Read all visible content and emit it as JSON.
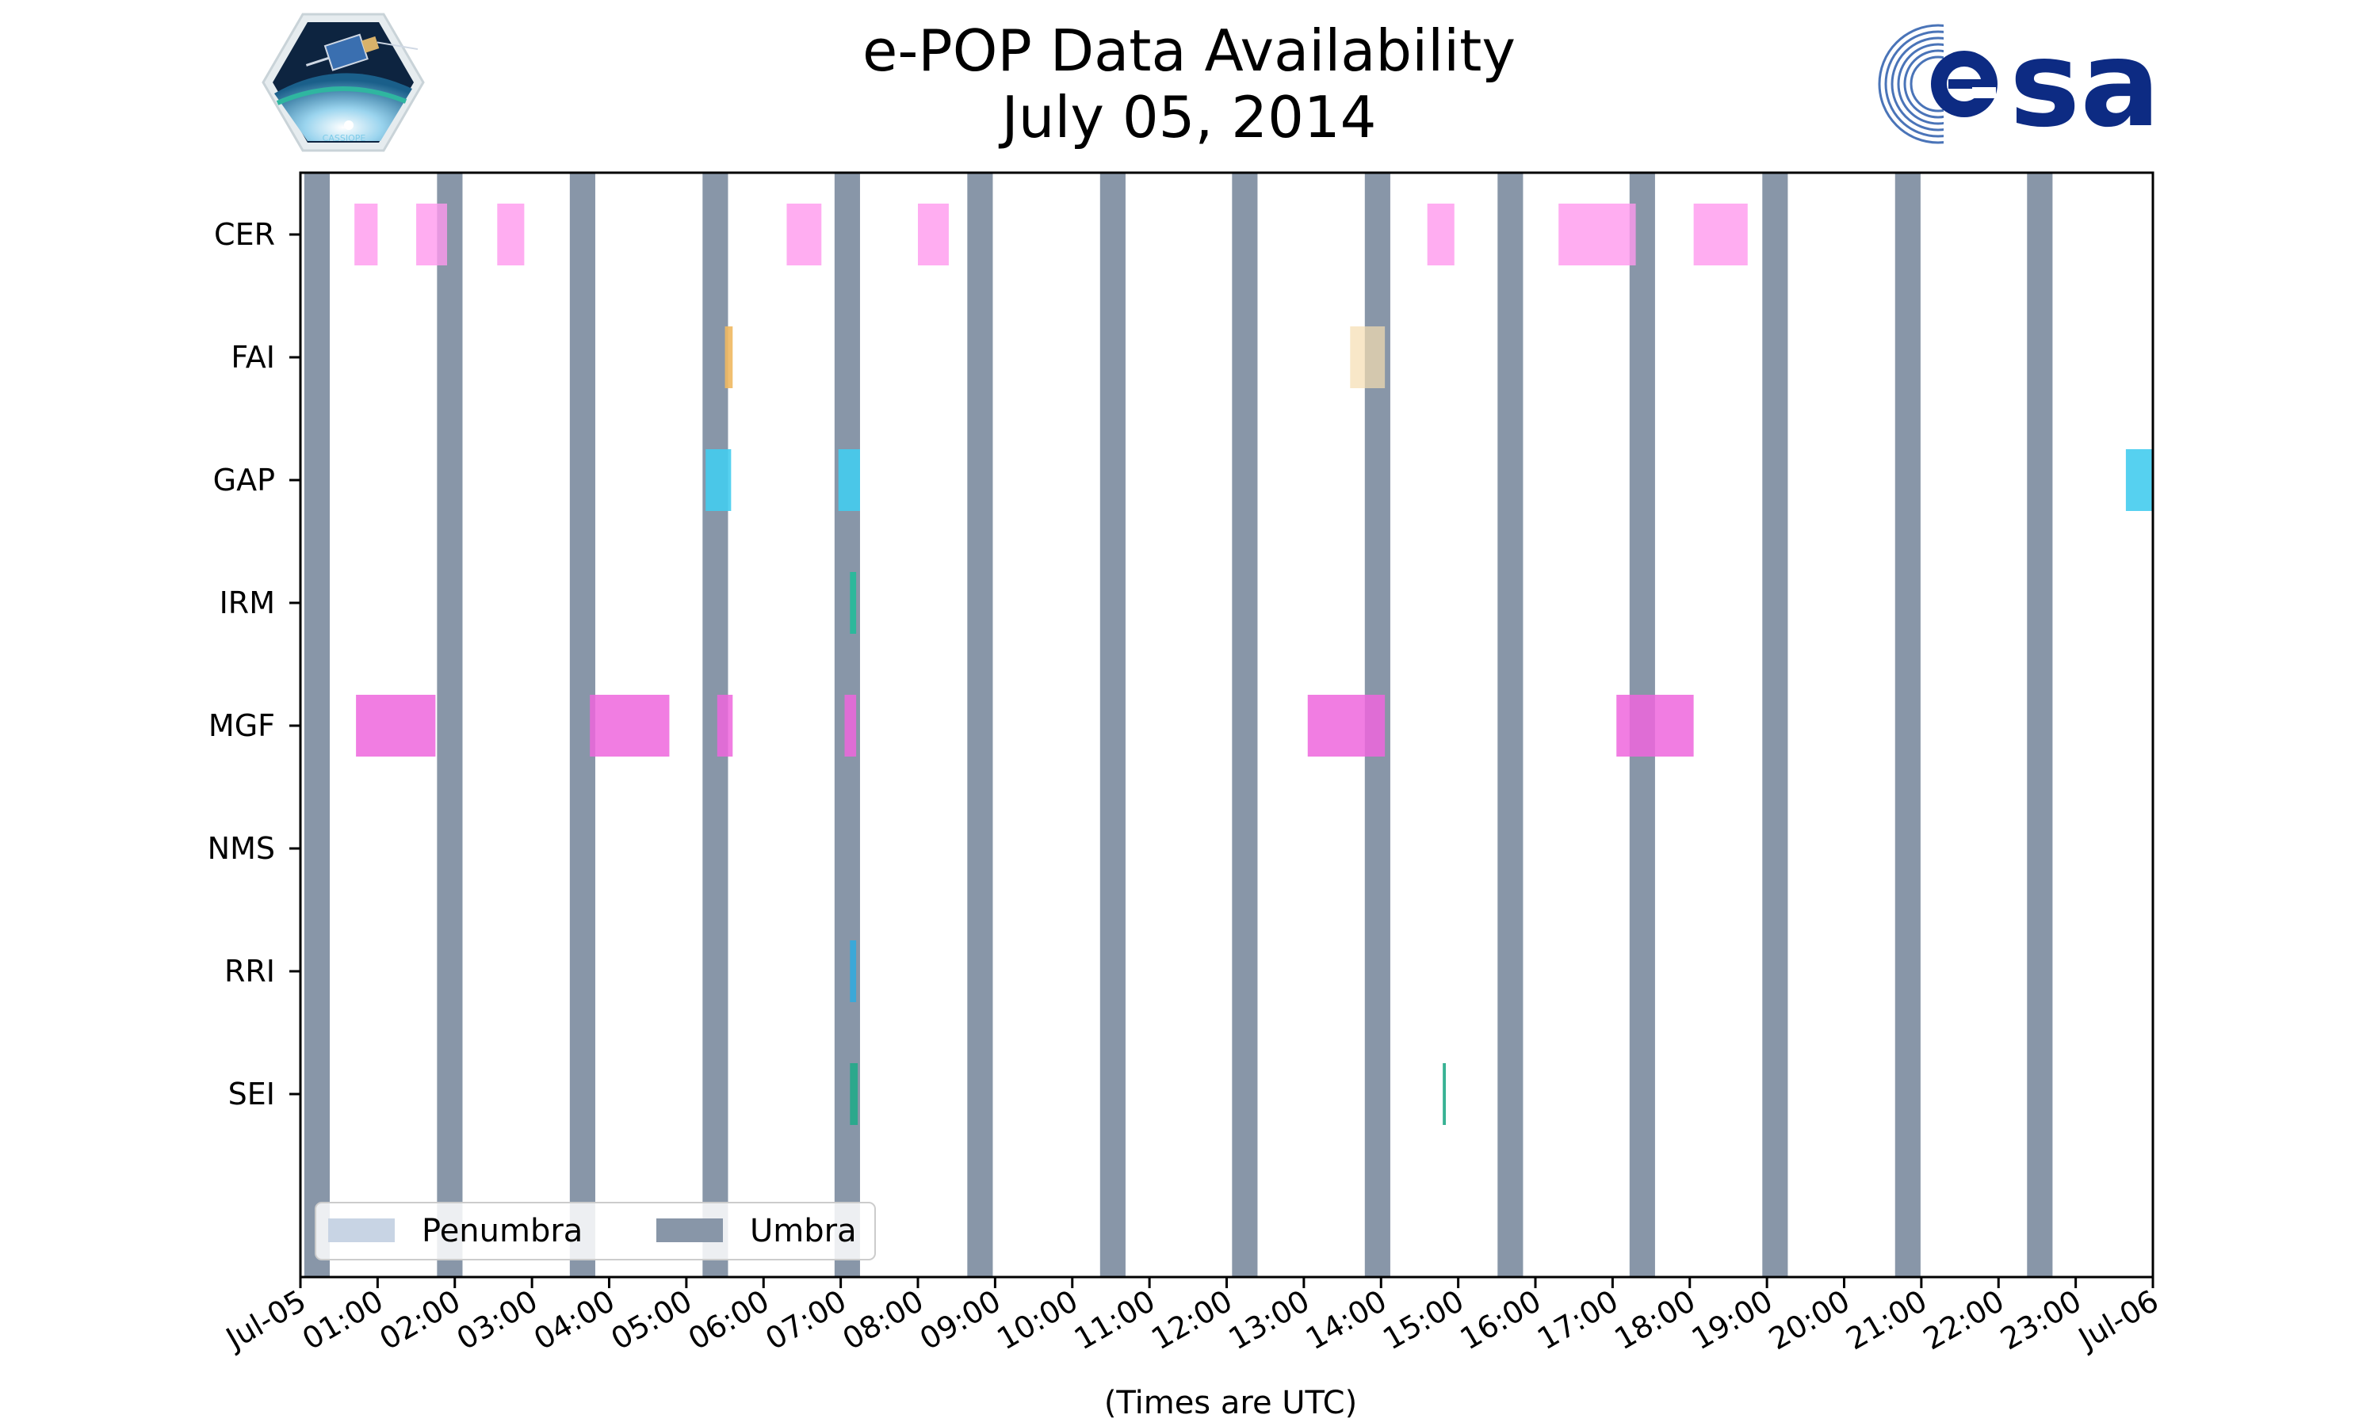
{
  "chart_data": {
    "type": "timeline",
    "title": "e-POP Data Availability",
    "subtitle": "July 05, 2014",
    "xlabel": "(Times are UTC)",
    "x_range_hours": [
      0,
      24
    ],
    "x_ticks": [
      {
        "h": 0,
        "label": "Jul-05"
      },
      {
        "h": 1,
        "label": "01:00"
      },
      {
        "h": 2,
        "label": "02:00"
      },
      {
        "h": 3,
        "label": "03:00"
      },
      {
        "h": 4,
        "label": "04:00"
      },
      {
        "h": 5,
        "label": "05:00"
      },
      {
        "h": 6,
        "label": "06:00"
      },
      {
        "h": 7,
        "label": "07:00"
      },
      {
        "h": 8,
        "label": "08:00"
      },
      {
        "h": 9,
        "label": "09:00"
      },
      {
        "h": 10,
        "label": "10:00"
      },
      {
        "h": 11,
        "label": "11:00"
      },
      {
        "h": 12,
        "label": "12:00"
      },
      {
        "h": 13,
        "label": "13:00"
      },
      {
        "h": 14,
        "label": "14:00"
      },
      {
        "h": 15,
        "label": "15:00"
      },
      {
        "h": 16,
        "label": "16:00"
      },
      {
        "h": 17,
        "label": "17:00"
      },
      {
        "h": 18,
        "label": "18:00"
      },
      {
        "h": 19,
        "label": "19:00"
      },
      {
        "h": 20,
        "label": "20:00"
      },
      {
        "h": 21,
        "label": "21:00"
      },
      {
        "h": 22,
        "label": "22:00"
      },
      {
        "h": 23,
        "label": "23:00"
      },
      {
        "h": 24,
        "label": "Jul-06"
      }
    ],
    "instruments": [
      "CER",
      "FAI",
      "GAP",
      "IRM",
      "MGF",
      "NMS",
      "RRI",
      "SEI"
    ],
    "umbra_intervals": [
      [
        0.05,
        0.38
      ],
      [
        1.77,
        2.1
      ],
      [
        3.49,
        3.82
      ],
      [
        5.21,
        5.54
      ],
      [
        6.92,
        7.25
      ],
      [
        8.64,
        8.97
      ],
      [
        10.36,
        10.69
      ],
      [
        12.07,
        12.4
      ],
      [
        13.79,
        14.12
      ],
      [
        15.51,
        15.84
      ],
      [
        17.22,
        17.55
      ],
      [
        18.94,
        19.27
      ],
      [
        20.66,
        20.99
      ],
      [
        22.37,
        22.7
      ]
    ],
    "series": [
      {
        "name": "CER",
        "color": "#ff99ee",
        "opacity": 0.8,
        "intervals": [
          [
            0.7,
            1.0
          ],
          [
            1.5,
            1.9
          ],
          [
            2.55,
            2.9
          ],
          [
            6.3,
            6.75
          ],
          [
            8.0,
            8.4
          ],
          [
            14.6,
            14.95
          ],
          [
            16.3,
            17.3
          ],
          [
            18.05,
            18.75
          ]
        ]
      },
      {
        "name": "FAI",
        "color": "#f0b860",
        "opacity": 0.9,
        "intervals": [
          [
            5.5,
            5.6
          ]
        ]
      },
      {
        "name": "FAI",
        "color": "#f5ddb0",
        "opacity": 0.7,
        "intervals": [
          [
            13.6,
            14.05
          ]
        ]
      },
      {
        "name": "GAP",
        "color": "#44ccee",
        "opacity": 0.9,
        "intervals": [
          [
            5.25,
            5.58
          ],
          [
            6.97,
            7.25
          ],
          [
            23.65,
            24.0
          ]
        ]
      },
      {
        "name": "IRM",
        "color": "#22bb99",
        "opacity": 0.9,
        "intervals": [
          [
            7.12,
            7.2
          ]
        ]
      },
      {
        "name": "MGF",
        "color": "#ee66dd",
        "opacity": 0.85,
        "intervals": [
          [
            0.72,
            1.75
          ],
          [
            3.75,
            4.78
          ],
          [
            5.4,
            5.6
          ],
          [
            7.05,
            7.2
          ],
          [
            13.05,
            14.05
          ],
          [
            17.05,
            18.05
          ]
        ]
      },
      {
        "name": "RRI",
        "color": "#33aadd",
        "opacity": 0.9,
        "intervals": [
          [
            7.12,
            7.2
          ]
        ]
      },
      {
        "name": "SEI",
        "color": "#22aa88",
        "opacity": 0.9,
        "intervals": [
          [
            7.12,
            7.22
          ],
          [
            14.8,
            14.84
          ]
        ]
      }
    ],
    "legend": {
      "position": "bottom-left",
      "entries": [
        {
          "label": "Penumbra",
          "color": "#c8d4e4"
        },
        {
          "label": "Umbra",
          "color": "#8896a8"
        }
      ]
    },
    "colors": {
      "umbra": "#8896a8",
      "penumbra": "#c8d4e4"
    }
  }
}
